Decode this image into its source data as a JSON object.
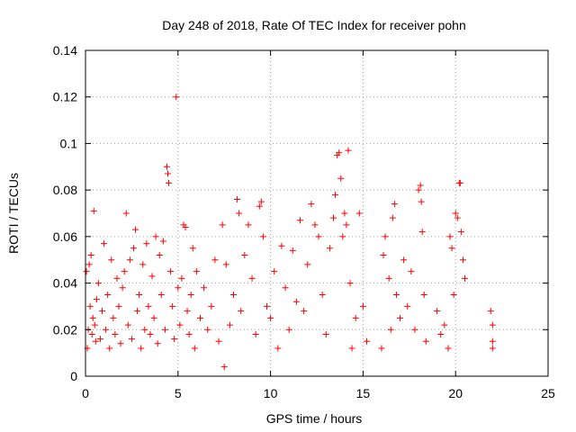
{
  "chart_data": {
    "type": "scatter",
    "title": "Day 248 of 2018, Rate Of TEC Index for receiver pohn",
    "xlabel": "GPS time / hours",
    "ylabel": "ROTI / TECUs",
    "xlim": [
      0,
      25
    ],
    "ylim": [
      0,
      0.14
    ],
    "x_ticks": [
      0,
      5,
      10,
      15,
      20,
      25
    ],
    "y_ticks": [
      0,
      0.02,
      0.04,
      0.06,
      0.08,
      0.1,
      0.12,
      0.14
    ],
    "x_tick_labels": [
      "0",
      "5",
      "10",
      "15",
      "20",
      "25"
    ],
    "y_tick_labels": [
      "0",
      "0.02",
      "0.04",
      "0.06",
      "0.08",
      "0.1",
      "0.12",
      "0.14"
    ],
    "grid": true,
    "marker": "plus",
    "marker_color": "#ff0000",
    "series": [
      {
        "name": "ROTI",
        "points": [
          [
            0.05,
            0.045
          ],
          [
            0.1,
            0.012
          ],
          [
            0.15,
            0.02
          ],
          [
            0.2,
            0.048
          ],
          [
            0.25,
            0.03
          ],
          [
            0.3,
            0.052
          ],
          [
            0.35,
            0.018
          ],
          [
            0.4,
            0.025
          ],
          [
            0.45,
            0.071
          ],
          [
            0.5,
            0.022
          ],
          [
            0.55,
            0.015
          ],
          [
            0.6,
            0.033
          ],
          [
            0.7,
            0.04
          ],
          [
            0.8,
            0.016
          ],
          [
            0.9,
            0.028
          ],
          [
            1.0,
            0.057
          ],
          [
            1.1,
            0.02
          ],
          [
            1.2,
            0.035
          ],
          [
            1.3,
            0.012
          ],
          [
            1.4,
            0.05
          ],
          [
            1.5,
            0.025
          ],
          [
            1.6,
            0.018
          ],
          [
            1.7,
            0.042
          ],
          [
            1.8,
            0.03
          ],
          [
            1.9,
            0.014
          ],
          [
            2.0,
            0.038
          ],
          [
            2.1,
            0.045
          ],
          [
            2.2,
            0.07
          ],
          [
            2.3,
            0.022
          ],
          [
            2.4,
            0.05
          ],
          [
            2.5,
            0.016
          ],
          [
            2.6,
            0.055
          ],
          [
            2.7,
            0.063
          ],
          [
            2.8,
            0.028
          ],
          [
            2.9,
            0.035
          ],
          [
            3.0,
            0.012
          ],
          [
            3.1,
            0.048
          ],
          [
            3.2,
            0.02
          ],
          [
            3.3,
            0.057
          ],
          [
            3.4,
            0.03
          ],
          [
            3.5,
            0.018
          ],
          [
            3.6,
            0.043
          ],
          [
            3.7,
            0.025
          ],
          [
            3.8,
            0.06
          ],
          [
            3.9,
            0.014
          ],
          [
            4.0,
            0.052
          ],
          [
            4.1,
            0.035
          ],
          [
            4.2,
            0.058
          ],
          [
            4.3,
            0.02
          ],
          [
            4.4,
            0.09
          ],
          [
            4.45,
            0.087
          ],
          [
            4.5,
            0.083
          ],
          [
            4.6,
            0.045
          ],
          [
            4.7,
            0.03
          ],
          [
            4.8,
            0.016
          ],
          [
            4.9,
            0.12
          ],
          [
            5.0,
            0.038
          ],
          [
            5.1,
            0.022
          ],
          [
            5.2,
            0.042
          ],
          [
            5.3,
            0.065
          ],
          [
            5.4,
            0.064
          ],
          [
            5.5,
            0.028
          ],
          [
            5.6,
            0.018
          ],
          [
            5.7,
            0.035
          ],
          [
            5.8,
            0.055
          ],
          [
            5.9,
            0.012
          ],
          [
            6.0,
            0.045
          ],
          [
            6.2,
            0.025
          ],
          [
            6.4,
            0.038
          ],
          [
            6.6,
            0.02
          ],
          [
            6.8,
            0.03
          ],
          [
            7.0,
            0.05
          ],
          [
            7.2,
            0.015
          ],
          [
            7.4,
            0.065
          ],
          [
            7.5,
            0.004
          ],
          [
            7.6,
            0.048
          ],
          [
            7.8,
            0.022
          ],
          [
            8.0,
            0.035
          ],
          [
            8.2,
            0.076
          ],
          [
            8.3,
            0.07
          ],
          [
            8.4,
            0.028
          ],
          [
            8.6,
            0.052
          ],
          [
            8.8,
            0.065
          ],
          [
            9.0,
            0.042
          ],
          [
            9.2,
            0.018
          ],
          [
            9.4,
            0.073
          ],
          [
            9.5,
            0.075
          ],
          [
            9.6,
            0.06
          ],
          [
            9.8,
            0.03
          ],
          [
            10.0,
            0.025
          ],
          [
            10.2,
            0.045
          ],
          [
            10.4,
            0.012
          ],
          [
            10.6,
            0.056
          ],
          [
            10.8,
            0.038
          ],
          [
            11.0,
            0.02
          ],
          [
            11.2,
            0.054
          ],
          [
            11.4,
            0.032
          ],
          [
            11.6,
            0.067
          ],
          [
            11.8,
            0.028
          ],
          [
            12.0,
            0.048
          ],
          [
            12.2,
            0.074
          ],
          [
            12.4,
            0.065
          ],
          [
            12.6,
            0.06
          ],
          [
            12.8,
            0.035
          ],
          [
            13.0,
            0.018
          ],
          [
            13.2,
            0.055
          ],
          [
            13.4,
            0.068
          ],
          [
            13.5,
            0.078
          ],
          [
            13.6,
            0.095
          ],
          [
            13.7,
            0.096
          ],
          [
            13.8,
            0.085
          ],
          [
            13.9,
            0.06
          ],
          [
            14.0,
            0.07
          ],
          [
            14.1,
            0.065
          ],
          [
            14.2,
            0.097
          ],
          [
            14.3,
            0.04
          ],
          [
            14.4,
            0.012
          ],
          [
            14.6,
            0.025
          ],
          [
            14.8,
            0.07
          ],
          [
            15.0,
            0.03
          ],
          [
            15.2,
            0.015
          ],
          [
            16.0,
            0.012
          ],
          [
            16.1,
            0.052
          ],
          [
            16.2,
            0.06
          ],
          [
            16.4,
            0.042
          ],
          [
            16.5,
            0.02
          ],
          [
            16.6,
            0.068
          ],
          [
            16.7,
            0.074
          ],
          [
            16.8,
            0.035
          ],
          [
            17.0,
            0.025
          ],
          [
            17.2,
            0.05
          ],
          [
            17.4,
            0.03
          ],
          [
            17.6,
            0.045
          ],
          [
            17.8,
            0.02
          ],
          [
            18.0,
            0.08
          ],
          [
            18.1,
            0.082
          ],
          [
            18.15,
            0.075
          ],
          [
            18.2,
            0.062
          ],
          [
            18.3,
            0.035
          ],
          [
            18.4,
            0.015
          ],
          [
            19.0,
            0.028
          ],
          [
            19.2,
            0.018
          ],
          [
            19.4,
            0.022
          ],
          [
            19.6,
            0.012
          ],
          [
            19.7,
            0.06
          ],
          [
            19.8,
            0.055
          ],
          [
            19.9,
            0.035
          ],
          [
            20.0,
            0.07
          ],
          [
            20.1,
            0.068
          ],
          [
            20.2,
            0.083
          ],
          [
            20.25,
            0.083
          ],
          [
            20.3,
            0.062
          ],
          [
            20.4,
            0.05
          ],
          [
            20.5,
            0.042
          ],
          [
            21.9,
            0.028
          ],
          [
            22.0,
            0.022
          ],
          [
            22.0,
            0.015
          ],
          [
            22.0,
            0.012
          ]
        ]
      }
    ]
  }
}
